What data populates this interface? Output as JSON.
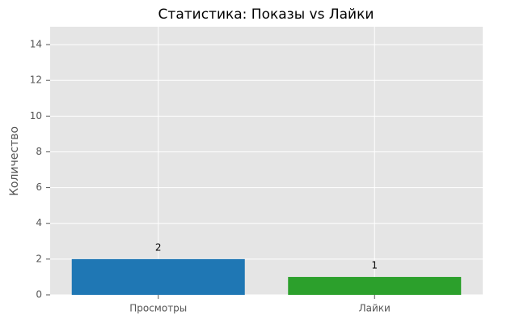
{
  "chart_data": {
    "type": "bar",
    "title": "Статистика: Показы vs Лайки",
    "ylabel": "Количество",
    "categories": [
      "Просмотры",
      "Лайки"
    ],
    "values": [
      2,
      1
    ],
    "colors": [
      "#1f77b4",
      "#2ca02c"
    ],
    "ylim": [
      0,
      15
    ],
    "yticks": [
      0,
      2,
      4,
      6,
      8,
      10,
      12,
      14
    ],
    "grid": true
  }
}
